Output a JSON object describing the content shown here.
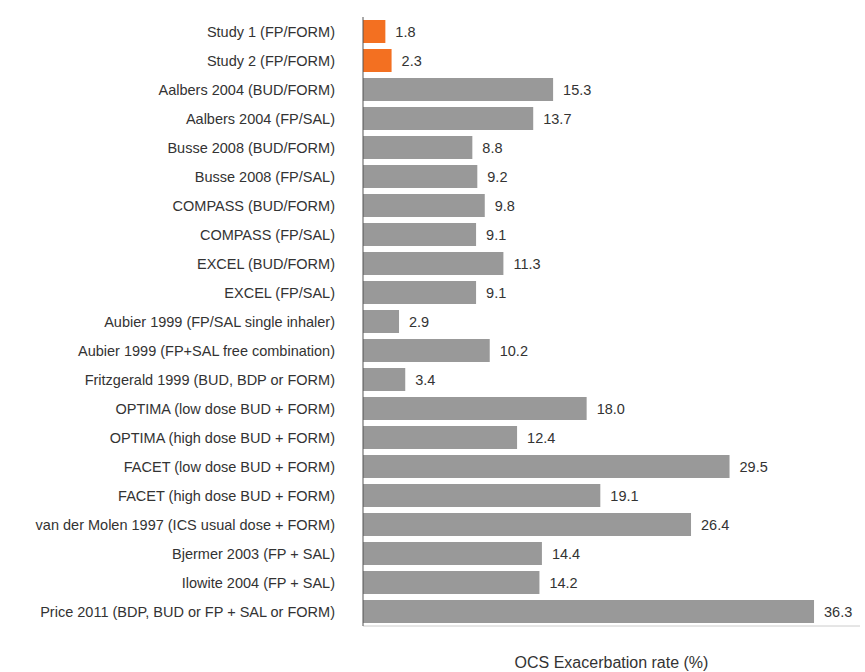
{
  "chart_data": {
    "type": "bar",
    "orientation": "horizontal",
    "xlabel": "OCS Exacerbation rate (%)",
    "categories": [
      "Study 1 (FP/FORM)",
      "Study 2 (FP/FORM)",
      "Aalbers 2004 (BUD/FORM)",
      "Aalbers 2004 (FP/SAL)",
      "Busse 2008 (BUD/FORM)",
      "Busse 2008 (FP/SAL)",
      "COMPASS (BUD/FORM)",
      "COMPASS (FP/SAL)",
      "EXCEL (BUD/FORM)",
      "EXCEL (FP/SAL)",
      "Aubier 1999 (FP/SAL single inhaler)",
      "Aubier 1999 (FP+SAL free combination)",
      "Fritzgerald 1999 (BUD, BDP or FORM)",
      "OPTIMA (low dose BUD + FORM)",
      "OPTIMA (high dose BUD + FORM)",
      "FACET (low dose BUD + FORM)",
      "FACET (high dose BUD + FORM)",
      "van der Molen 1997 (ICS usual dose + FORM)",
      "Bjermer 2003 (FP + SAL)",
      "Ilowite 2004 (FP + SAL)",
      "Price 2011 (BDP, BUD or FP + SAL or FORM)"
    ],
    "values": [
      1.8,
      2.3,
      15.3,
      13.7,
      8.8,
      9.2,
      9.8,
      9.1,
      11.3,
      9.1,
      2.9,
      10.2,
      3.4,
      18.0,
      12.4,
      29.5,
      19.1,
      26.4,
      14.4,
      14.2,
      36.3
    ],
    "value_labels": [
      "1.8",
      "2.3",
      "15.3",
      "13.7",
      "8.8",
      "9.2",
      "9.8",
      "9.1",
      "11.3",
      "9.1",
      "2.9",
      "10.2",
      "3.4",
      "18.0",
      "12.4",
      "29.5",
      "19.1",
      "26.4",
      "14.4",
      "14.2",
      "36.3"
    ],
    "colors": [
      "#f37021",
      "#f37021",
      "#999999",
      "#999999",
      "#999999",
      "#999999",
      "#999999",
      "#999999",
      "#999999",
      "#999999",
      "#999999",
      "#999999",
      "#999999",
      "#999999",
      "#999999",
      "#999999",
      "#999999",
      "#999999",
      "#999999",
      "#999999",
      "#999999"
    ],
    "xlim": [
      0,
      40
    ],
    "tick_labels": "y",
    "data_labels": true
  }
}
